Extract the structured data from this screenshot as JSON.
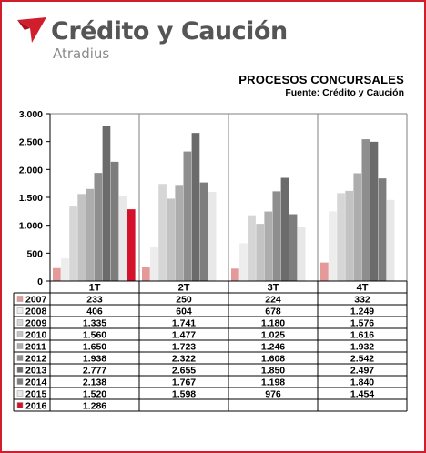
{
  "brand": {
    "name": "Crédito y Caución",
    "sub": "Atradius"
  },
  "chart_data": {
    "type": "bar",
    "title": "PROCESOS CONCURSALES",
    "subtitle": "Fuente: Crédito y Caución",
    "categories": [
      "1T",
      "2T",
      "3T",
      "4T"
    ],
    "ylim": [
      0,
      3000
    ],
    "yticks": [
      0,
      500,
      1000,
      1500,
      2000,
      2500,
      3000
    ],
    "ytick_labels": [
      "0",
      "500",
      "1.000",
      "1.500",
      "2.000",
      "2.500",
      "3.000"
    ],
    "grid": "vertical",
    "legend": "data table below chart",
    "series": [
      {
        "name": "2007",
        "color": "#e59a9a",
        "values": [
          233,
          250,
          224,
          332
        ],
        "labels": [
          "233",
          "250",
          "224",
          "332"
        ]
      },
      {
        "name": "2008",
        "color": "#ededed",
        "values": [
          406,
          604,
          678,
          1249
        ],
        "labels": [
          "406",
          "604",
          "678",
          "1.249"
        ]
      },
      {
        "name": "2009",
        "color": "#d6d6d6",
        "values": [
          1335,
          1741,
          1180,
          1576
        ],
        "labels": [
          "1.335",
          "1.741",
          "1.180",
          "1.576"
        ]
      },
      {
        "name": "2010",
        "color": "#c3c3c3",
        "values": [
          1560,
          1477,
          1025,
          1616
        ],
        "labels": [
          "1.560",
          "1.477",
          "1.025",
          "1.616"
        ]
      },
      {
        "name": "2011",
        "color": "#adadad",
        "values": [
          1650,
          1723,
          1246,
          1932
        ],
        "labels": [
          "1.650",
          "1.723",
          "1.246",
          "1.932"
        ]
      },
      {
        "name": "2012",
        "color": "#8e8e8e",
        "values": [
          1938,
          2322,
          1608,
          2542
        ],
        "labels": [
          "1.938",
          "2.322",
          "1.608",
          "2.542"
        ]
      },
      {
        "name": "2013",
        "color": "#6b6b6b",
        "values": [
          2777,
          2655,
          1850,
          2497
        ],
        "labels": [
          "2.777",
          "2.655",
          "1.850",
          "2.497"
        ]
      },
      {
        "name": "2014",
        "color": "#7d7d7d",
        "values": [
          2138,
          1767,
          1198,
          1840
        ],
        "labels": [
          "2.138",
          "1.767",
          "1.198",
          "1.840"
        ]
      },
      {
        "name": "2015",
        "color": "#e8e8e8",
        "values": [
          1520,
          1598,
          976,
          1454
        ],
        "labels": [
          "1.520",
          "1.598",
          "976",
          "1.454"
        ]
      },
      {
        "name": "2016",
        "color": "#d3112a",
        "values": [
          1286,
          null,
          null,
          null
        ],
        "labels": [
          "1.286",
          "",
          "",
          ""
        ]
      }
    ]
  }
}
